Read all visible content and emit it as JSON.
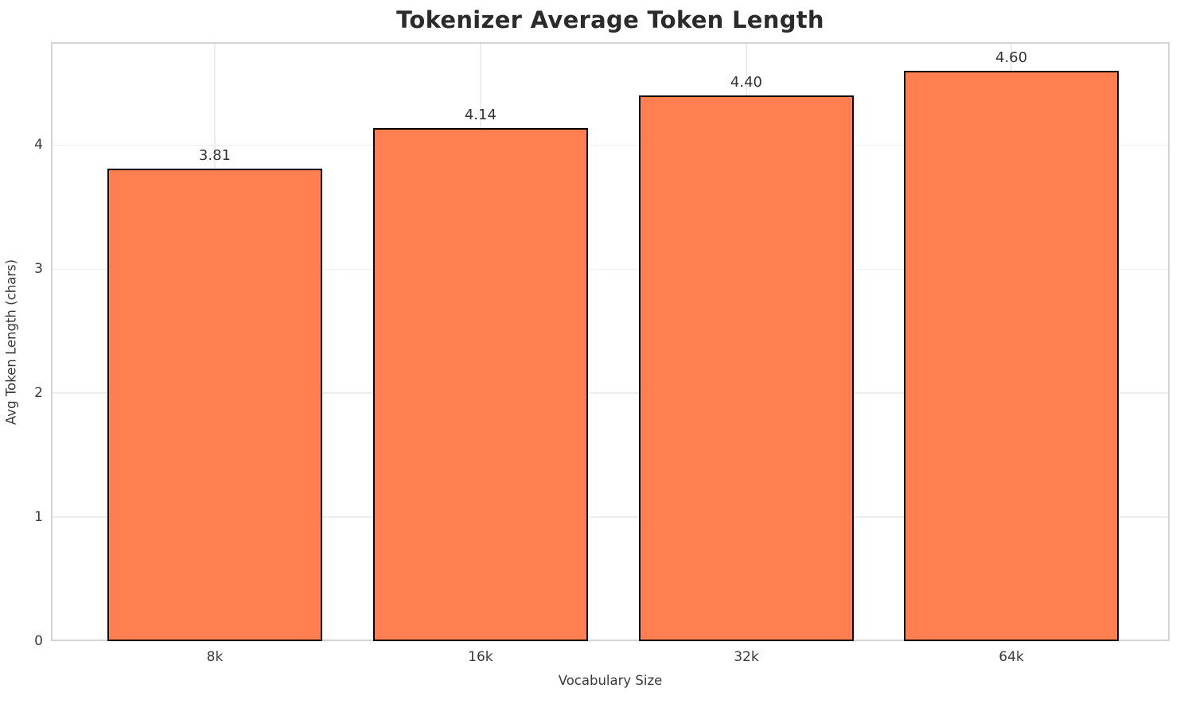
{
  "figure": {
    "background": "#ffffff"
  },
  "chart_data": {
    "type": "bar",
    "title": "Tokenizer Average Token Length",
    "xlabel": "Vocabulary Size",
    "ylabel": "Avg Token Length (chars)",
    "categories": [
      "8k",
      "16k",
      "32k",
      "64k"
    ],
    "values": [
      3.81,
      4.14,
      4.4,
      4.6
    ],
    "value_labels": [
      "3.81",
      "4.14",
      "4.40",
      "4.60"
    ],
    "ylim": [
      0,
      4.83
    ],
    "yticks": [
      0,
      1,
      2,
      3,
      4
    ],
    "grid": true,
    "legend": "none",
    "colors": {
      "bar_fill": "#FF7F50",
      "bar_edge": "#000000",
      "grid": "#ededed",
      "spine": "#d4d4d4",
      "tick_text": "#3a3a3a",
      "value_text": "#333333",
      "title_text": "#2b2b2b"
    }
  }
}
